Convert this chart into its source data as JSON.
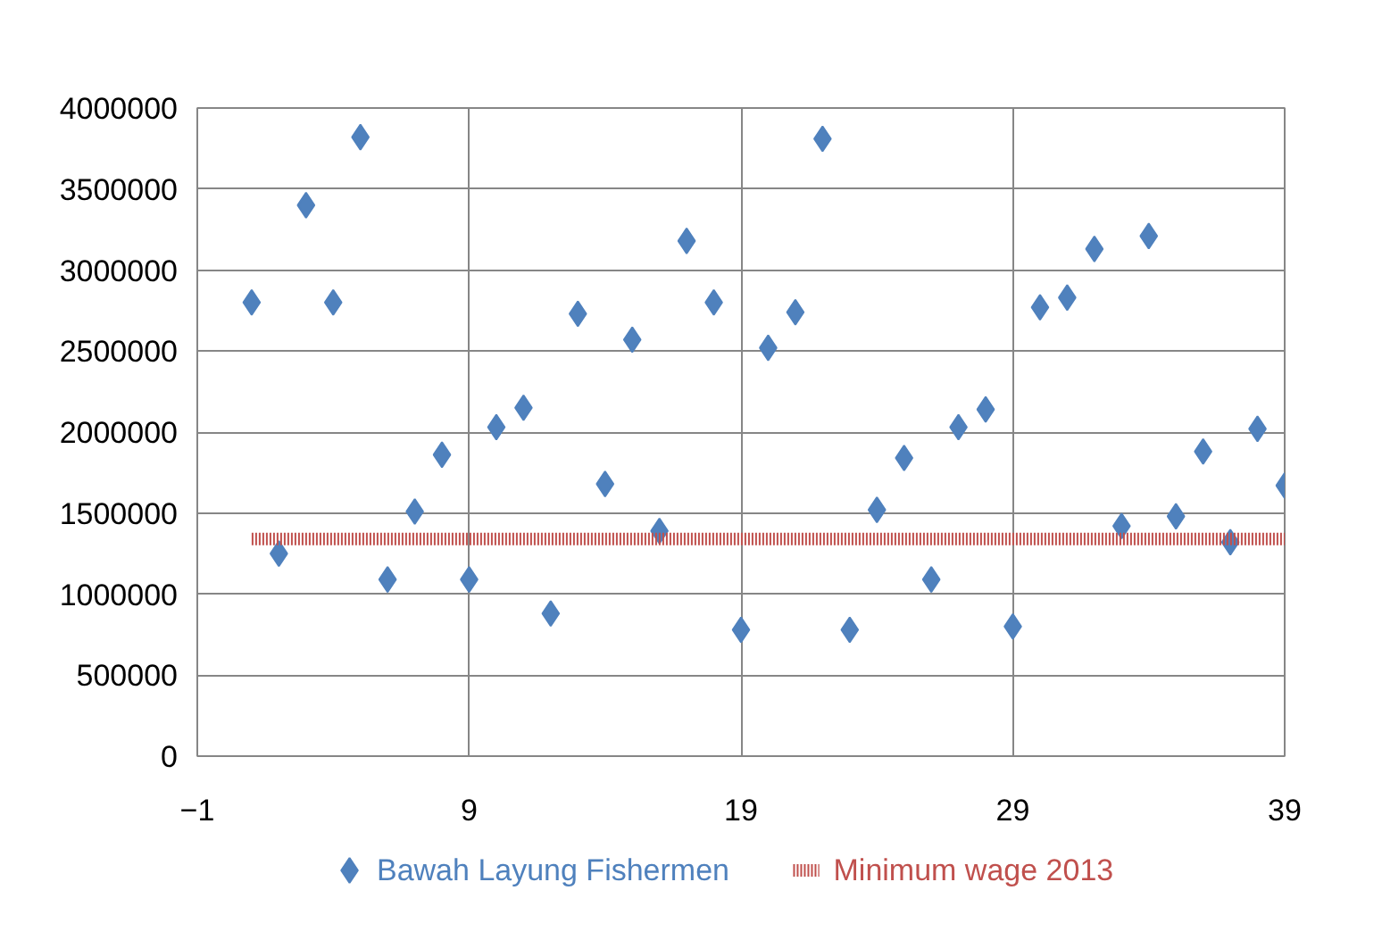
{
  "chart_data": {
    "type": "scatter",
    "x": [
      1,
      2,
      3,
      4,
      5,
      6,
      7,
      8,
      9,
      10,
      11,
      12,
      13,
      14,
      15,
      16,
      17,
      18,
      19,
      20,
      21,
      22,
      23,
      24,
      25,
      26,
      27,
      28,
      29,
      30,
      31,
      32,
      33,
      34,
      35,
      36,
      37,
      38,
      39
    ],
    "series": [
      {
        "name": "Bawah Layung Fishermen",
        "color": "#4f81bd",
        "marker": "diamond",
        "values": [
          2800000,
          1250000,
          3400000,
          2800000,
          3820000,
          1090000,
          1510000,
          1860000,
          1090000,
          2030000,
          2150000,
          880000,
          2730000,
          1680000,
          2570000,
          1390000,
          3180000,
          2800000,
          780000,
          2520000,
          2740000,
          3810000,
          780000,
          1520000,
          1840000,
          1090000,
          2030000,
          2140000,
          800000,
          2770000,
          2830000,
          3130000,
          1420000,
          3210000,
          1480000,
          1880000,
          1320000,
          2020000,
          1670000
        ]
      },
      {
        "name": "Minimum wage 2013",
        "color": "#c0504d",
        "type": "line",
        "line_style": "dotted",
        "values": [
          1340000,
          1340000,
          1340000,
          1340000,
          1340000,
          1340000,
          1340000,
          1340000,
          1340000,
          1340000,
          1340000,
          1340000,
          1340000,
          1340000,
          1340000,
          1340000,
          1340000,
          1340000,
          1340000,
          1340000,
          1340000,
          1340000,
          1340000,
          1340000,
          1340000,
          1340000,
          1340000,
          1340000,
          1340000,
          1340000,
          1340000,
          1340000,
          1340000,
          1340000,
          1340000,
          1340000,
          1340000,
          1340000,
          1340000
        ]
      }
    ],
    "xlim": [
      -1,
      39
    ],
    "xticks": [
      -1,
      9,
      19,
      29,
      39
    ],
    "ylim": [
      0,
      4000000
    ],
    "yticks": [
      0,
      500000,
      1000000,
      1500000,
      2000000,
      2500000,
      3000000,
      3500000,
      4000000
    ],
    "grid": true,
    "legend": "bottom"
  }
}
